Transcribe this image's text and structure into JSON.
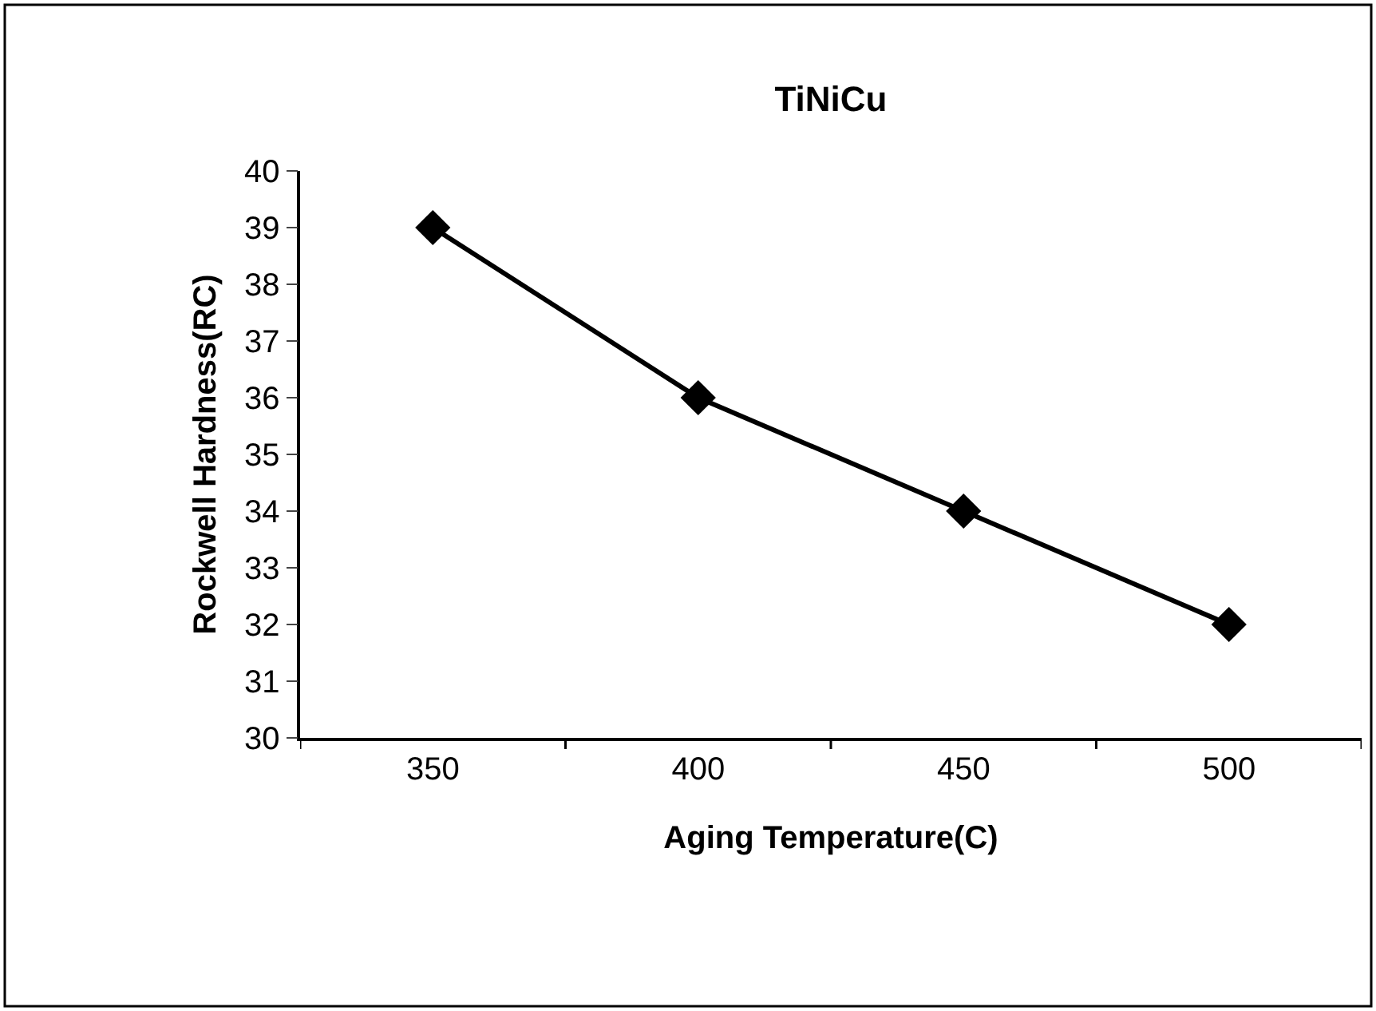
{
  "chart_data": {
    "type": "line",
    "title": "TiNiCu",
    "xlabel": "Aging Temperature(C)",
    "ylabel": "Rockwell Hardness(RC)",
    "categories": [
      "350",
      "400",
      "450",
      "500"
    ],
    "series": [
      {
        "color": "#000000",
        "values": [
          39,
          36,
          34,
          32
        ]
      }
    ],
    "ylim": [
      30,
      40
    ],
    "yticks": [
      30,
      31,
      32,
      33,
      34,
      35,
      36,
      37,
      38,
      39,
      40
    ],
    "legend": false,
    "marker": "diamond",
    "line_style": "solid"
  }
}
